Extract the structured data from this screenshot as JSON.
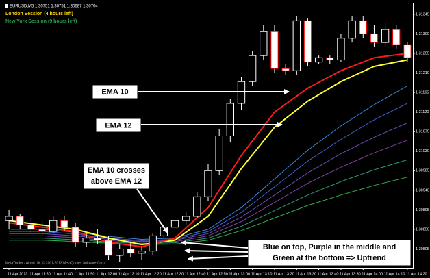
{
  "chart_data": {
    "type": "candlestick",
    "title": "EURUSD,M5  1.30751 1.30751 1.30687 1.30704",
    "sessions": [
      {
        "text": "London Session (4 hours left)",
        "color": "#ffd700"
      },
      {
        "text": "New York Session (9 hours left)",
        "color": "#2e9e55"
      }
    ],
    "watermark": "MetaTrader - Alpari UK, © 2001-2013 MetaQuotes Software Corp.",
    "categories": [
      "11 Apr 2013",
      null,
      "11 Apr 11:30",
      null,
      "11 Apr 11:40",
      null,
      "11 Apr 11:50",
      null,
      "11 Apr 12:00",
      null,
      "11 Apr 12:10",
      null,
      "11 Apr 12:20",
      null,
      "11 Apr 12:30",
      null,
      "11 Apr 12:40",
      null,
      "11 Apr 12:50",
      null,
      "11 Apr 13:00",
      null,
      "11 Apr 13:10",
      null,
      "11 Apr 13:20",
      null,
      "11 Apr 13:30",
      null,
      "11 Apr 13:40",
      null,
      "11 Apr 13:50",
      null,
      "11 Apr 14:00",
      null,
      "11 Apr 14:10",
      null,
      "11 Apr 14:20"
    ],
    "open": [
      1.3087,
      1.3088,
      1.3086,
      1.3085,
      1.30845,
      1.3087,
      1.30855,
      1.3082,
      1.3083,
      1.30825,
      1.3079,
      1.30805,
      1.30795,
      1.308,
      1.30835,
      1.30855,
      1.3087,
      1.3088,
      1.30925,
      1.30985,
      1.31065,
      1.3114,
      1.3119,
      1.3125,
      1.31305,
      1.3122,
      1.31215,
      1.3133,
      1.31235,
      1.31245,
      1.3124,
      1.3129,
      1.3133,
      1.313,
      1.3128,
      1.3131,
      1.31275
    ],
    "high": [
      1.30895,
      1.30885,
      1.30875,
      1.3087,
      1.3088,
      1.3088,
      1.30865,
      1.3084,
      1.3085,
      1.30835,
      1.30815,
      1.3082,
      1.3081,
      1.3084,
      1.3086,
      1.3088,
      1.3089,
      1.30935,
      1.31,
      1.3108,
      1.3115,
      1.312,
      1.3126,
      1.3132,
      1.3132,
      1.3123,
      1.3134,
      1.31335,
      1.3125,
      1.3125,
      1.313,
      1.3134,
      1.3134,
      1.3132,
      1.31325,
      1.3132,
      1.3128
    ],
    "low": [
      1.3085,
      1.3085,
      1.3084,
      1.30835,
      1.3084,
      1.30845,
      1.3081,
      1.3081,
      1.30815,
      1.3078,
      1.30775,
      1.30785,
      1.3078,
      1.3079,
      1.3083,
      1.3085,
      1.3086,
      1.30875,
      1.30915,
      1.30975,
      1.3105,
      1.31125,
      1.3118,
      1.3124,
      1.3121,
      1.31205,
      1.31205,
      1.31225,
      1.3123,
      1.3123,
      1.31235,
      1.3128,
      1.3129,
      1.3127,
      1.3127,
      1.31265,
      1.31235
    ],
    "close": [
      1.3088,
      1.3086,
      1.3085,
      1.30845,
      1.3087,
      1.30855,
      1.3082,
      1.3083,
      1.30825,
      1.3079,
      1.30805,
      1.30795,
      1.308,
      1.30835,
      1.30855,
      1.3087,
      1.3088,
      1.30925,
      1.30985,
      1.31065,
      1.3114,
      1.3119,
      1.3125,
      1.31305,
      1.3122,
      1.31215,
      1.3133,
      1.31235,
      1.31245,
      1.3124,
      1.3129,
      1.3133,
      1.313,
      1.3128,
      1.3131,
      1.31275,
      1.31245
    ],
    "candle_colors": {
      "up_body": "#000000",
      "up_border": "#ffffff",
      "down_body": "#ffffff",
      "down_border": "#ff0000",
      "wick": "#ffffff"
    },
    "lines": [
      {
        "color": "#ff1a1a",
        "x": [
          0,
          3,
          6,
          9,
          12,
          15,
          18,
          21,
          24,
          27,
          30,
          33,
          36
        ],
        "values": [
          1.30865,
          1.30855,
          1.30845,
          1.3082,
          1.3081,
          1.3083,
          1.309,
          1.3102,
          1.3112,
          1.31175,
          1.31215,
          1.31245,
          1.31255
        ]
      },
      {
        "color": "#ffff33",
        "x": [
          0,
          3,
          6,
          9,
          12,
          15,
          18,
          21,
          24,
          27,
          30,
          33,
          36
        ],
        "values": [
          1.3087,
          1.3086,
          1.3085,
          1.3083,
          1.30815,
          1.30825,
          1.3088,
          1.3099,
          1.31085,
          1.31145,
          1.3119,
          1.31225,
          1.3124
        ]
      },
      {
        "color": "#3a86d6",
        "x": [
          0,
          3,
          6,
          9,
          12,
          15,
          18,
          21,
          24,
          27,
          30,
          33,
          36
        ],
        "values": [
          1.3085,
          1.3085,
          1.30843,
          1.30834,
          1.30827,
          1.3083,
          1.3085,
          1.309,
          1.30966,
          1.31032,
          1.31088,
          1.31137,
          1.3118
        ]
      },
      {
        "color": "#3f5fc8",
        "x": [
          0,
          3,
          6,
          9,
          12,
          15,
          18,
          21,
          24,
          27,
          30,
          33,
          36
        ],
        "values": [
          1.30845,
          1.30845,
          1.30839,
          1.3083,
          1.30824,
          1.30827,
          1.30845,
          1.30889,
          1.30948,
          1.31007,
          1.31057,
          1.31102,
          1.3114
        ]
      },
      {
        "color": "#6a4fb8",
        "x": [
          0,
          3,
          6,
          9,
          12,
          15,
          18,
          21,
          24,
          27,
          30,
          33,
          36
        ],
        "values": [
          1.3084,
          1.3084,
          1.30835,
          1.30827,
          1.30822,
          1.30825,
          1.3084,
          1.30878,
          1.30929,
          1.3098,
          1.31024,
          1.31062,
          1.31095
        ]
      },
      {
        "color": "#8a3fa8",
        "x": [
          0,
          3,
          6,
          9,
          12,
          15,
          18,
          21,
          24,
          27,
          30,
          33,
          36
        ],
        "values": [
          1.30835,
          1.30835,
          1.30831,
          1.30824,
          1.3082,
          1.30822,
          1.30835,
          1.30868,
          1.30912,
          1.30956,
          1.30993,
          1.31026,
          1.31055
        ]
      },
      {
        "color": "#2f9a7a",
        "x": [
          0,
          3,
          6,
          9,
          12,
          15,
          18,
          21,
          24,
          27,
          30,
          33,
          36
        ],
        "values": [
          1.3083,
          1.3083,
          1.30826,
          1.30821,
          1.30817,
          1.30819,
          1.3083,
          1.30857,
          1.30893,
          1.30929,
          1.3096,
          1.30987,
          1.3101
        ]
      },
      {
        "color": "#2fb84a",
        "x": [
          0,
          3,
          6,
          9,
          12,
          15,
          18,
          21,
          24,
          27,
          30,
          33,
          36
        ],
        "values": [
          1.30825,
          1.30825,
          1.30822,
          1.30818,
          1.30815,
          1.30816,
          1.30825,
          1.30847,
          1.30876,
          1.30905,
          1.30929,
          1.30951,
          1.3097
        ]
      }
    ],
    "ylim": [
      1.3076,
      1.3137
    ],
    "yticks": [
      {
        "value": 1.30805,
        "label": "1.30805"
      },
      {
        "value": 1.3085,
        "label": "1.30850"
      },
      {
        "value": 1.30895,
        "label": "1.30895"
      },
      {
        "value": 1.3094,
        "label": "1.30940"
      },
      {
        "value": 1.30985,
        "label": "1.30985"
      },
      {
        "value": 1.3103,
        "label": "1.31030"
      },
      {
        "value": 1.31075,
        "label": "1.31075"
      },
      {
        "value": 1.3112,
        "label": "1.31120"
      },
      {
        "value": 1.31165,
        "label": "1.31165"
      },
      {
        "value": 1.3121,
        "label": "1.31210"
      },
      {
        "value": 1.31255,
        "label": "1.31255"
      },
      {
        "value": 1.313,
        "label": "1.31300"
      },
      {
        "value": 1.31345,
        "label": "1.31345"
      }
    ],
    "annotations": [
      [
        "EMA 10"
      ],
      [
        "EMA 12"
      ],
      [
        "EMA 10 crosses",
        "above EMA 12"
      ],
      [
        "Blue on top, Purple in the middle and",
        "Green at the bottom => Uptrend"
      ]
    ]
  }
}
